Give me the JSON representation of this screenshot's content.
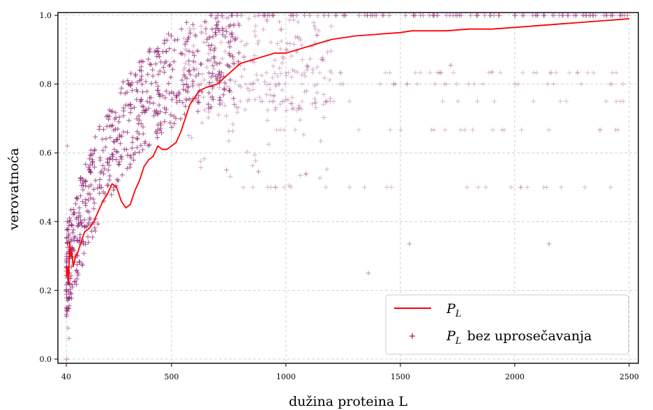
{
  "chart_data": {
    "type": "scatter",
    "xlabel": "dužina proteina L",
    "ylabel": "verovatnoća",
    "xlim": [
      0,
      2500
    ],
    "ylim": [
      0,
      1
    ],
    "x_ticks": [
      40,
      500,
      1000,
      1500,
      2000,
      2500
    ],
    "x_tick_labels": [
      "40",
      "500",
      "1000",
      "1500",
      "2000",
      "2500"
    ],
    "y_ticks": [
      0.0,
      0.2,
      0.4,
      0.6,
      0.8,
      1.0
    ],
    "y_tick_labels": [
      "0.0",
      "0.2",
      "0.4",
      "0.6",
      "0.8",
      "1.0"
    ],
    "grid": true,
    "legend_position": "bottom-right",
    "colors": {
      "line": "#ff0000",
      "scatter": "#8b1a6b"
    },
    "series": [
      {
        "name": "P_L",
        "legend_main": "P",
        "legend_sub": "L",
        "legend_rest": "",
        "kind": "line",
        "x": [
          40,
          45,
          50,
          55,
          60,
          65,
          70,
          75,
          80,
          90,
          100,
          120,
          140,
          160,
          180,
          200,
          220,
          240,
          260,
          280,
          300,
          320,
          340,
          360,
          380,
          400,
          420,
          440,
          460,
          480,
          500,
          520,
          540,
          560,
          580,
          600,
          620,
          650,
          700,
          750,
          800,
          850,
          900,
          950,
          1000,
          1050,
          1100,
          1150,
          1200,
          1300,
          1400,
          1500,
          1550,
          1600,
          1700,
          1800,
          1900,
          2000,
          2100,
          2200,
          2300,
          2400,
          2500
        ],
        "y": [
          0.24,
          0.27,
          0.22,
          0.34,
          0.3,
          0.31,
          0.27,
          0.28,
          0.3,
          0.31,
          0.33,
          0.37,
          0.38,
          0.4,
          0.43,
          0.46,
          0.48,
          0.51,
          0.5,
          0.46,
          0.44,
          0.45,
          0.49,
          0.52,
          0.56,
          0.58,
          0.59,
          0.62,
          0.61,
          0.61,
          0.62,
          0.63,
          0.66,
          0.7,
          0.74,
          0.76,
          0.78,
          0.79,
          0.8,
          0.83,
          0.86,
          0.87,
          0.88,
          0.89,
          0.89,
          0.9,
          0.91,
          0.92,
          0.93,
          0.94,
          0.945,
          0.95,
          0.955,
          0.955,
          0.955,
          0.96,
          0.96,
          0.965,
          0.97,
          0.975,
          0.98,
          0.985,
          0.99
        ]
      },
      {
        "name": "P_L bez uprosečavanja",
        "legend_main": "P",
        "legend_sub": "L",
        "legend_rest": "bez uprosečavanja",
        "kind": "scatter",
        "x": [],
        "y": []
      }
    ]
  }
}
